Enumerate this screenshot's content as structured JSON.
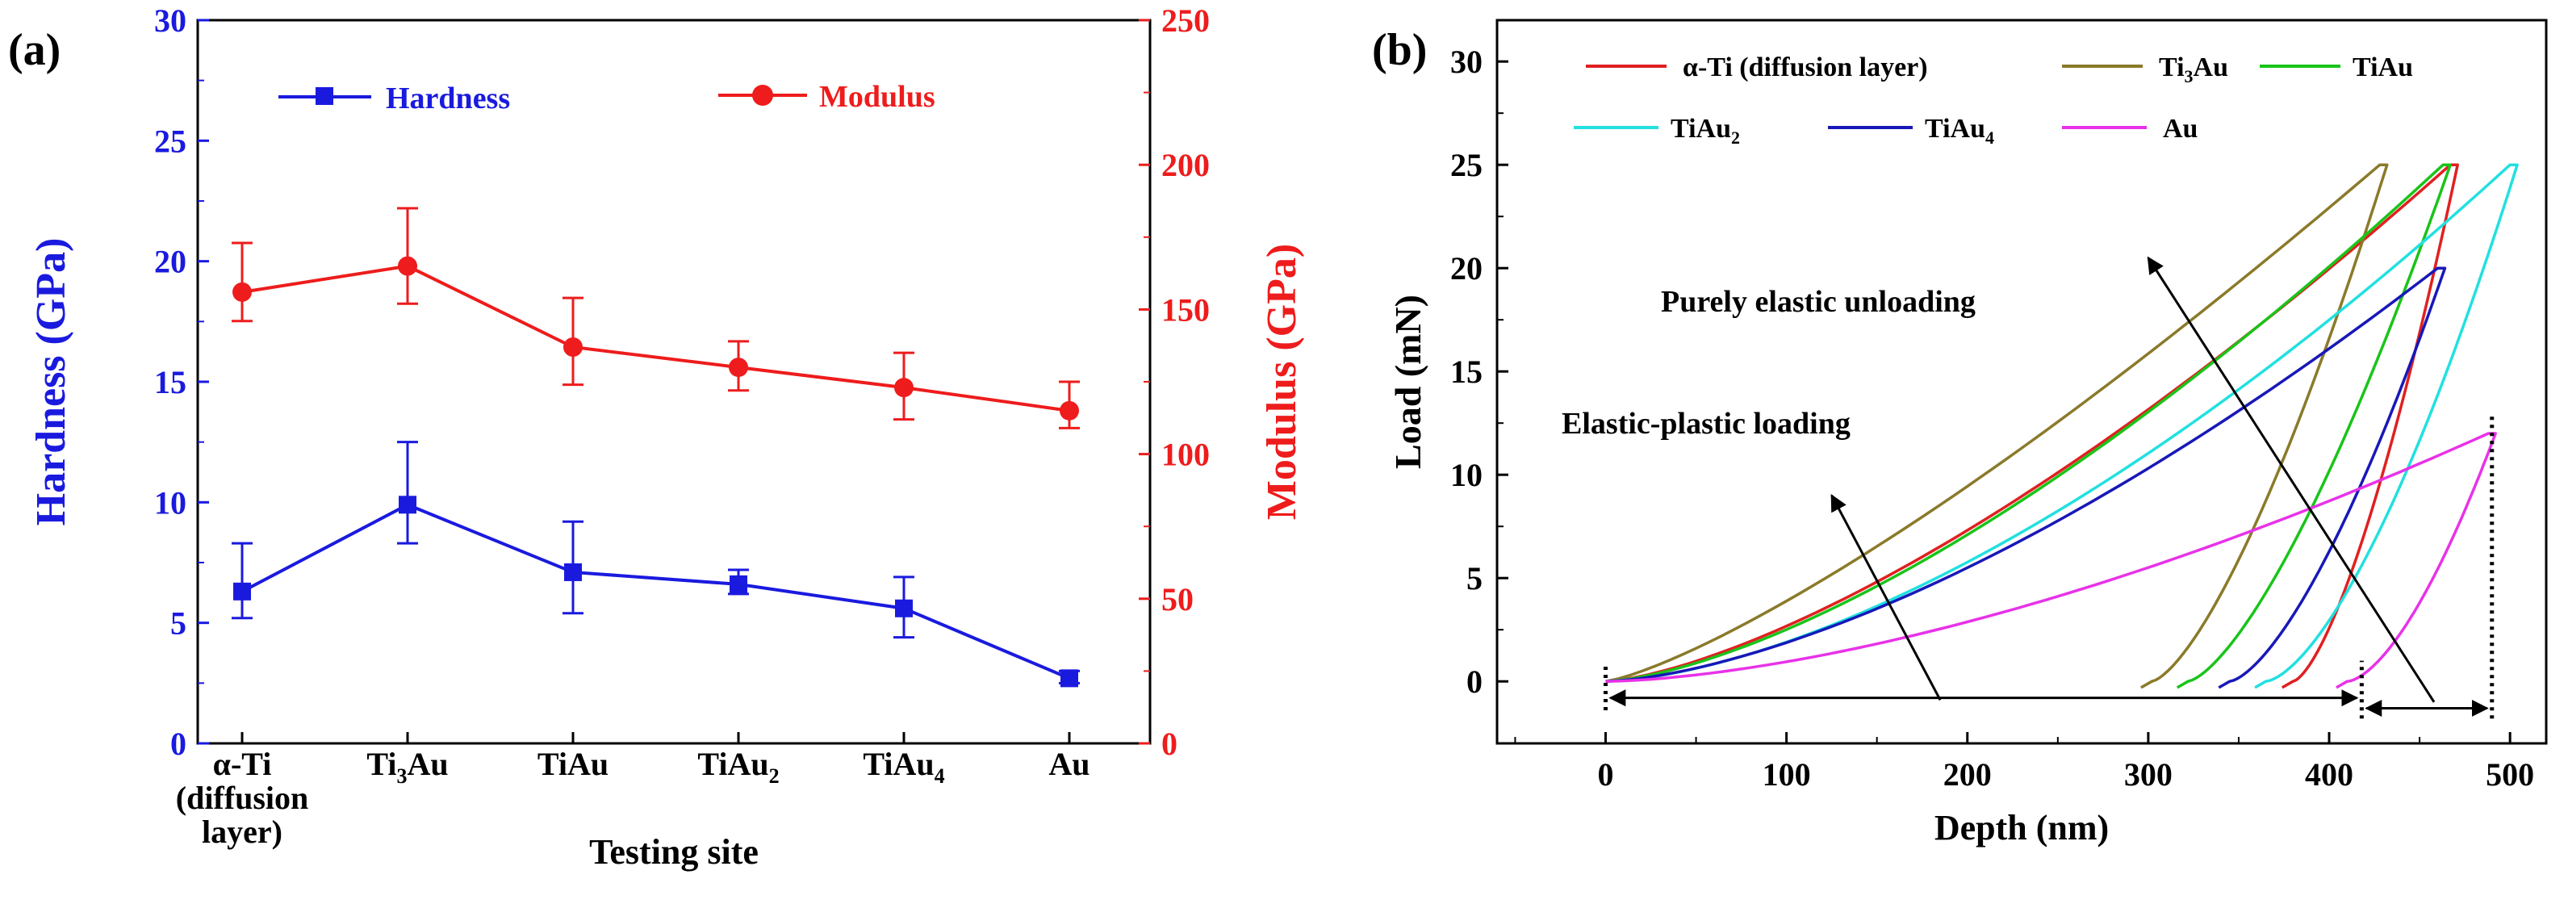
{
  "chart_data": [
    {
      "panel_label": "(a)",
      "type": "line",
      "title": "",
      "categories": [
        "α-Ti (diffusion layer)",
        "Ti3Au",
        "TiAu",
        "TiAu2",
        "TiAu4",
        "Au"
      ],
      "category_tick_lines": [
        [
          "α-Ti",
          "(diffusion",
          "layer)"
        ],
        [
          "Ti3Au"
        ],
        [
          "TiAu"
        ],
        [
          "TiAu2"
        ],
        [
          "TiAu4"
        ],
        [
          "Au"
        ]
      ],
      "xlabel": "Testing site",
      "ylabel": "Hardness (GPa)",
      "y2label": "Modulus (GPa)",
      "ylim": [
        0,
        30
      ],
      "y2lim": [
        0,
        250
      ],
      "yticks": [
        "0",
        "5",
        "10",
        "15",
        "20",
        "25",
        "30"
      ],
      "y2ticks": [
        "0",
        "50",
        "100",
        "150",
        "200",
        "250"
      ],
      "legend_position": "top",
      "series": [
        {
          "name": "Hardness",
          "axis": "left",
          "marker": "square",
          "color": "#1a1adf",
          "values": [
            6.3,
            9.9,
            7.1,
            6.6,
            5.6,
            2.7
          ],
          "err_low": [
            5.2,
            8.3,
            5.4,
            6.2,
            4.4,
            2.5
          ],
          "err_high": [
            8.3,
            12.5,
            9.2,
            7.2,
            6.9,
            3.0
          ]
        },
        {
          "name": "Modulus",
          "axis": "right",
          "marker": "circle",
          "color": "#ee1c1c",
          "values": [
            156,
            165,
            137,
            130,
            123,
            115
          ],
          "err_low": [
            146,
            152,
            124,
            122,
            112,
            109
          ],
          "err_high": [
            173,
            185,
            154,
            139,
            135,
            125
          ]
        }
      ]
    },
    {
      "panel_label": "(b)",
      "type": "line",
      "title": "",
      "xlabel": "Depth (nm)",
      "ylabel": "Load (mN)",
      "xlim": [
        -60,
        520
      ],
      "ylim": [
        -3,
        32
      ],
      "xticks": [
        "0",
        "100",
        "200",
        "300",
        "400",
        "500"
      ],
      "yticks": [
        "0",
        "5",
        "10",
        "15",
        "20",
        "25",
        "30"
      ],
      "legend_position": "top",
      "series": [
        {
          "name": "α-Ti (diffusion layer)",
          "color": "#e02020",
          "max_depth": 467,
          "final_depth": 380,
          "max_load": 25,
          "load_exponent": 1.45,
          "unload_exponent": 1.5
        },
        {
          "name": "Ti3Au",
          "color": "#8a7a2a",
          "max_depth": 428,
          "final_depth": 302,
          "max_load": 25,
          "load_exponent": 1.28,
          "unload_exponent": 1.45
        },
        {
          "name": "TiAu",
          "color": "#19c419",
          "max_depth": 463,
          "final_depth": 322,
          "max_load": 25,
          "load_exponent": 1.5,
          "unload_exponent": 1.45
        },
        {
          "name": "TiAu2",
          "color": "#22e0e0",
          "max_depth": 500,
          "final_depth": 365,
          "max_load": 25,
          "load_exponent": 1.6,
          "unload_exponent": 1.55
        },
        {
          "name": "TiAu4",
          "color": "#1818b8",
          "max_depth": 460,
          "final_depth": 345,
          "max_load": 20,
          "load_exponent": 1.55,
          "unload_exponent": 1.5
        },
        {
          "name": "Au",
          "color": "#e832e8",
          "max_depth": 488,
          "final_depth": 410,
          "max_load": 12,
          "load_exponent": 1.6,
          "unload_exponent": 1.6
        }
      ],
      "annotations": [
        "Purely elastic unloading",
        "Elastic-plastic loading"
      ],
      "dashed_markers_depth": [
        0,
        418,
        490
      ]
    }
  ]
}
